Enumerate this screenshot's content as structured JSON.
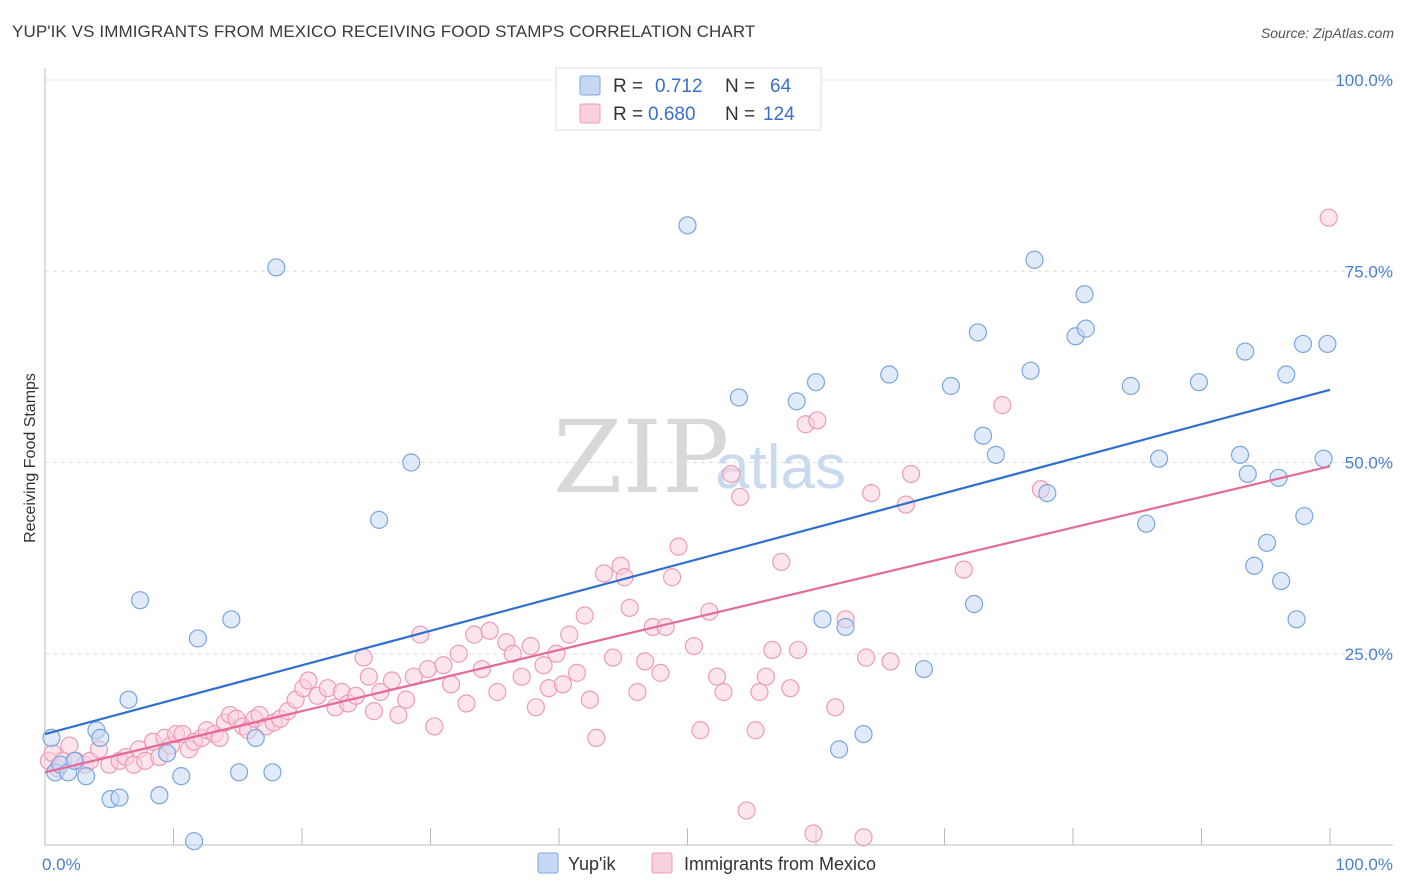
{
  "header": {
    "title": "YUP'IK VS IMMIGRANTS FROM MEXICO RECEIVING FOOD STAMPS CORRELATION CHART",
    "source": "Source: ZipAtlas.com"
  },
  "watermark": {
    "zip": "ZIP",
    "atlas": "atlas"
  },
  "colors": {
    "blue_fill": "#c6d8f3",
    "blue_stroke": "#7aa6e0",
    "blue_line": "#2f6fcf",
    "pink_fill": "#f9d0de",
    "pink_stroke": "#ee9bb7",
    "pink_line": "#e46a97",
    "tick_text": "#4a7fd0",
    "grid": "#dddddd"
  },
  "legend": {
    "rows": [
      {
        "r_label": "R =",
        "r_value": "0.712",
        "n_label": "N =",
        "n_value": "64"
      },
      {
        "r_label": "R =",
        "r_value": "0.680",
        "n_label": "N =",
        "n_value": "124"
      }
    ]
  },
  "bottom_legend": {
    "series1": "Yup'ik",
    "series2": "Immigrants from Mexico"
  },
  "chart_data": {
    "type": "scatter",
    "title": "YUP'IK VS IMMIGRANTS FROM MEXICO RECEIVING FOOD STAMPS CORRELATION CHART",
    "xlabel": "",
    "ylabel": "Receiving Food Stamps",
    "xlim": [
      0,
      100
    ],
    "ylim": [
      0,
      100
    ],
    "x_tick_labels": [
      "0.0%",
      "100.0%"
    ],
    "y_tick_labels": [
      "25.0%",
      "50.0%",
      "75.0%",
      "100.0%"
    ],
    "y_tick_values": [
      25,
      50,
      75,
      100
    ],
    "grid": true,
    "series": [
      {
        "name": "Yup'ik",
        "r": 0.712,
        "n": 64,
        "trend": {
          "x": [
            0,
            100
          ],
          "y": [
            14.5,
            59.5
          ]
        },
        "points": [
          [
            0.5,
            14
          ],
          [
            0.8,
            9.5
          ],
          [
            1.2,
            10.5
          ],
          [
            1.8,
            9.5
          ],
          [
            2.3,
            11
          ],
          [
            3.2,
            9
          ],
          [
            4,
            15
          ],
          [
            4.3,
            14
          ],
          [
            5.1,
            6
          ],
          [
            5.8,
            6.2
          ],
          [
            6.5,
            19
          ],
          [
            7.4,
            32
          ],
          [
            8.9,
            6.5
          ],
          [
            9.5,
            12
          ],
          [
            10.6,
            9
          ],
          [
            11.6,
            0.5
          ],
          [
            11.9,
            27
          ],
          [
            14.5,
            29.5
          ],
          [
            15.1,
            9.5
          ],
          [
            16.4,
            14
          ],
          [
            17.7,
            9.5
          ],
          [
            18.0,
            75.5
          ],
          [
            26,
            42.5
          ],
          [
            28.5,
            50
          ],
          [
            50,
            81
          ],
          [
            54,
            58.5
          ],
          [
            58.5,
            58
          ],
          [
            60,
            60.5
          ],
          [
            60.5,
            29.5
          ],
          [
            61.8,
            12.5
          ],
          [
            62.3,
            28.5
          ],
          [
            63.7,
            14.5
          ],
          [
            65.7,
            61.5
          ],
          [
            68.4,
            23
          ],
          [
            70.5,
            60
          ],
          [
            72.3,
            31.5
          ],
          [
            72.6,
            67
          ],
          [
            73,
            53.5
          ],
          [
            74,
            51
          ],
          [
            76.7,
            62
          ],
          [
            77,
            76.5
          ],
          [
            78,
            46
          ],
          [
            80.2,
            66.5
          ],
          [
            80.9,
            72
          ],
          [
            81,
            67.5
          ],
          [
            84.5,
            60
          ],
          [
            85.7,
            42
          ],
          [
            86.7,
            50.5
          ],
          [
            89.8,
            60.5
          ],
          [
            93,
            51
          ],
          [
            93.4,
            64.5
          ],
          [
            93.6,
            48.5
          ],
          [
            94.1,
            36.5
          ],
          [
            95.1,
            39.5
          ],
          [
            96,
            48
          ],
          [
            96.2,
            34.5
          ],
          [
            96.6,
            61.5
          ],
          [
            97.4,
            29.5
          ],
          [
            97.9,
            65.5
          ],
          [
            98,
            43
          ],
          [
            99.5,
            50.5
          ],
          [
            99.8,
            65.5
          ]
        ]
      },
      {
        "name": "Immigrants from Mexico",
        "r": 0.68,
        "n": 124,
        "trend": {
          "x": [
            0,
            100
          ],
          "y": [
            9.5,
            49.5
          ]
        },
        "points": [
          [
            0.3,
            11
          ],
          [
            0.6,
            12
          ],
          [
            1,
            10
          ],
          [
            1.4,
            11
          ],
          [
            1.9,
            13
          ],
          [
            2.4,
            11
          ],
          [
            3.1,
            10.5
          ],
          [
            3.5,
            11
          ],
          [
            4.2,
            12.5
          ],
          [
            5,
            10.5
          ],
          [
            5.8,
            11
          ],
          [
            6.3,
            11.5
          ],
          [
            6.9,
            10.5
          ],
          [
            7.3,
            12.5
          ],
          [
            7.8,
            11
          ],
          [
            8.4,
            13.5
          ],
          [
            8.9,
            11.5
          ],
          [
            9.3,
            14
          ],
          [
            9.8,
            13
          ],
          [
            10.2,
            14.5
          ],
          [
            10.7,
            14.5
          ],
          [
            11.2,
            12.5
          ],
          [
            11.6,
            13.5
          ],
          [
            12.2,
            14
          ],
          [
            12.6,
            15
          ],
          [
            13.2,
            14.5
          ],
          [
            13.6,
            14
          ],
          [
            14,
            16
          ],
          [
            14.4,
            17
          ],
          [
            14.9,
            16.5
          ],
          [
            15.4,
            15.5
          ],
          [
            15.8,
            15
          ],
          [
            16.3,
            16.5
          ],
          [
            16.7,
            17
          ],
          [
            17.2,
            15.5
          ],
          [
            17.8,
            16
          ],
          [
            18.3,
            16.5
          ],
          [
            18.9,
            17.5
          ],
          [
            19.5,
            19
          ],
          [
            20.1,
            20.5
          ],
          [
            20.5,
            21.5
          ],
          [
            21.2,
            19.5
          ],
          [
            22,
            20.5
          ],
          [
            22.6,
            18
          ],
          [
            23.1,
            20
          ],
          [
            23.6,
            18.5
          ],
          [
            24.2,
            19.5
          ],
          [
            24.8,
            24.5
          ],
          [
            25.2,
            22
          ],
          [
            25.6,
            17.5
          ],
          [
            26.1,
            20
          ],
          [
            27,
            21.5
          ],
          [
            27.5,
            17
          ],
          [
            28.1,
            19
          ],
          [
            28.7,
            22
          ],
          [
            29.2,
            27.5
          ],
          [
            29.8,
            23
          ],
          [
            30.3,
            15.5
          ],
          [
            31,
            23.5
          ],
          [
            31.6,
            21
          ],
          [
            32.2,
            25
          ],
          [
            32.8,
            18.5
          ],
          [
            33.4,
            27.5
          ],
          [
            34,
            23
          ],
          [
            34.6,
            28
          ],
          [
            35.2,
            20
          ],
          [
            35.9,
            26.5
          ],
          [
            36.4,
            25
          ],
          [
            37.1,
            22
          ],
          [
            37.8,
            26
          ],
          [
            38.2,
            18
          ],
          [
            38.8,
            23.5
          ],
          [
            39.2,
            20.5
          ],
          [
            39.8,
            25
          ],
          [
            40.3,
            21
          ],
          [
            40.8,
            27.5
          ],
          [
            41.4,
            22.5
          ],
          [
            42,
            30
          ],
          [
            42.4,
            19
          ],
          [
            42.9,
            14
          ],
          [
            43.5,
            35.5
          ],
          [
            44.2,
            24.5
          ],
          [
            44.8,
            36.5
          ],
          [
            45.1,
            35
          ],
          [
            45.5,
            31
          ],
          [
            46.1,
            20
          ],
          [
            46.7,
            24
          ],
          [
            47.3,
            28.5
          ],
          [
            47.9,
            22.5
          ],
          [
            48.3,
            28.5
          ],
          [
            48.8,
            35
          ],
          [
            49.3,
            39
          ],
          [
            50.5,
            26
          ],
          [
            51,
            15
          ],
          [
            51.7,
            30.5
          ],
          [
            52.3,
            22
          ],
          [
            52.8,
            20
          ],
          [
            53.4,
            48.5
          ],
          [
            54.1,
            45.5
          ],
          [
            54.6,
            4.5
          ],
          [
            55.3,
            15
          ],
          [
            55.6,
            20
          ],
          [
            56.1,
            22
          ],
          [
            56.6,
            25.5
          ],
          [
            57.3,
            37
          ],
          [
            58,
            20.5
          ],
          [
            58.6,
            25.5
          ],
          [
            59.2,
            55
          ],
          [
            59.8,
            1.5
          ],
          [
            60.1,
            55.5
          ],
          [
            61.5,
            18
          ],
          [
            62.3,
            29.5
          ],
          [
            63.7,
            1
          ],
          [
            63.9,
            24.5
          ],
          [
            64.3,
            46
          ],
          [
            65.8,
            24
          ],
          [
            67,
            44.5
          ],
          [
            67.4,
            48.5
          ],
          [
            71.5,
            36
          ],
          [
            74.5,
            57.5
          ],
          [
            77.5,
            46.5
          ],
          [
            99.9,
            82
          ]
        ]
      }
    ]
  }
}
